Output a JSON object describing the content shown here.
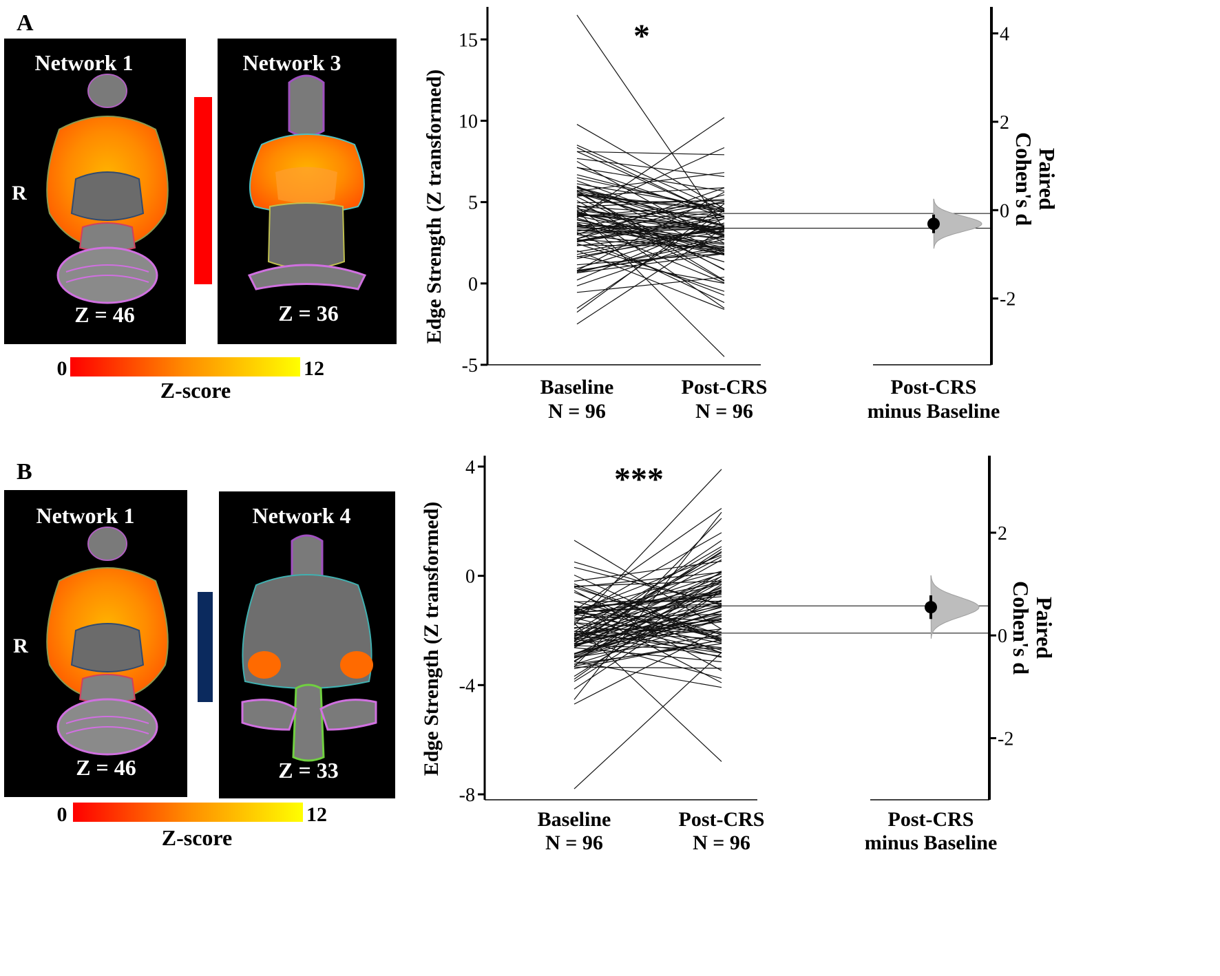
{
  "panels": [
    {
      "id": "A",
      "label": "A",
      "brain_left": {
        "title": "Network 1",
        "slice": "Z = 46",
        "side_label": "R"
      },
      "brain_right": {
        "title": "Network 3",
        "slice": "Z = 36"
      },
      "edge_color": "#ff0000",
      "colorbar": {
        "min_label": "0",
        "max_label": "12",
        "title": "Z-score",
        "colors": [
          "#ff0000",
          "#ff8c00",
          "#ffff00"
        ]
      },
      "significance": "*"
    },
    {
      "id": "B",
      "label": "B",
      "brain_left": {
        "title": "Network 1",
        "slice": "Z = 46",
        "side_label": "R"
      },
      "brain_right": {
        "title": "Network 4",
        "slice": "Z = 33"
      },
      "edge_color": "#0b2a5e",
      "colorbar": {
        "min_label": "0",
        "max_label": "12",
        "title": "Z-score",
        "colors": [
          "#ff0000",
          "#ff8c00",
          "#ffff00"
        ]
      },
      "significance": "***"
    }
  ],
  "chart_data": [
    {
      "type": "line",
      "subtype": "paired slopegraph with estimation plot",
      "panel": "A",
      "ylabel": "Edge Strength (Z transformed)",
      "ylabel_right": "Paired Cohen's d",
      "ylim": [
        -5,
        17
      ],
      "yticks": [
        -5,
        0,
        5,
        10,
        15
      ],
      "ylim_right": [
        -3.5,
        4.6
      ],
      "yticks_right": [
        -2,
        0,
        2,
        4
      ],
      "x_categories": [
        "Baseline\nN = 96",
        "Post-CRS\nN = 96",
        "Post-CRS\nminus Baseline"
      ],
      "x_labels": [
        [
          "Baseline",
          "N = 96"
        ],
        [
          "Post-CRS",
          "N = 96"
        ],
        [
          "Post-CRS",
          "minus Baseline"
        ]
      ],
      "significance": "*",
      "baseline_mean": 4.3,
      "post_mean": 3.4,
      "effect_size": {
        "cohens_d": -0.31,
        "ci": [
          -0.52,
          -0.1
        ]
      },
      "n": 96,
      "pairs_summary": {
        "baseline_range": [
          -2.5,
          16.5
        ],
        "post_range": [
          -4.5,
          10.2
        ],
        "direction": "decrease"
      }
    },
    {
      "type": "line",
      "subtype": "paired slopegraph with estimation plot",
      "panel": "B",
      "ylabel": "Edge Strength (Z transformed)",
      "ylabel_right": "Paired Cohen's d",
      "ylim": [
        -8.2,
        4.4
      ],
      "yticks": [
        -8,
        -4,
        0,
        4
      ],
      "ylim_right": [
        -3.2,
        3.5
      ],
      "yticks_right": [
        -2,
        0,
        2
      ],
      "x_categories": [
        "Baseline\nN = 96",
        "Post-CRS\nN = 96",
        "Post-CRS\nminus Baseline"
      ],
      "x_labels": [
        [
          "Baseline",
          "N = 96"
        ],
        [
          "Post-CRS",
          "N = 96"
        ],
        [
          "Post-CRS",
          "minus Baseline"
        ]
      ],
      "significance": "***",
      "baseline_mean": -2.1,
      "post_mean": -1.1,
      "effect_size": {
        "cohens_d": 0.55,
        "ci": [
          0.32,
          0.78
        ]
      },
      "n": 96,
      "pairs_summary": {
        "baseline_range": [
          -7.8,
          1.3
        ],
        "post_range": [
          -6.8,
          3.9
        ],
        "direction": "increase"
      }
    }
  ]
}
